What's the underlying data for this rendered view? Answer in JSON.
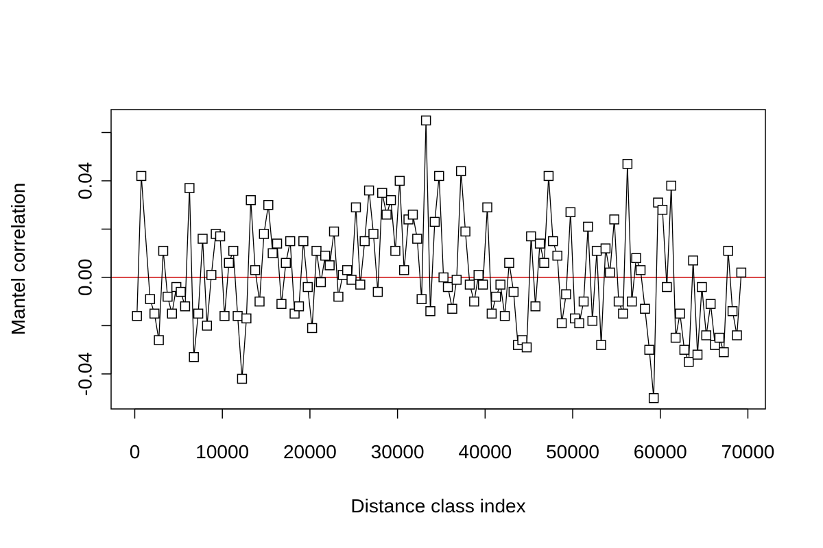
{
  "chart_data": {
    "type": "line",
    "title": "",
    "xlabel": "Distance class index",
    "ylabel": "Mantel correlation",
    "xlim": [
      -2700,
      72000
    ],
    "ylim": [
      -0.0545,
      0.0695
    ],
    "x_ticks": [
      0,
      10000,
      20000,
      30000,
      40000,
      50000,
      60000,
      70000
    ],
    "x_tick_labels": [
      "0",
      "10000",
      "20000",
      "30000",
      "40000",
      "50000",
      "60000",
      "70000"
    ],
    "y_ticks": [
      -0.04,
      -0.02,
      0.0,
      0.02,
      0.04,
      0.06
    ],
    "y_tick_labels": [
      "-0.04",
      "",
      "0.00",
      "",
      "0.04",
      ""
    ],
    "grid": false,
    "legend": "none",
    "marker": "open-square",
    "line_color": "#000000",
    "reference_line": {
      "y": 0,
      "color": "#cc0000"
    },
    "series": [
      {
        "x": [
          250,
          750,
          1750,
          2250,
          2750,
          3250,
          3750,
          4250,
          4750,
          5250,
          5750,
          6250,
          6750,
          7250,
          7750,
          8250,
          8750,
          9250,
          9750,
          10250,
          10750,
          11250,
          11750,
          12250,
          12750,
          13250,
          13750,
          14250,
          14750,
          15250,
          15750,
          16250,
          16750,
          17250,
          17750,
          18250,
          18750,
          19250,
          19750,
          20250,
          20750,
          21250,
          21750,
          22250,
          22750,
          23250,
          23750,
          24250,
          24750,
          25250,
          25750,
          26250,
          26750,
          27250,
          27750,
          28250,
          28750,
          29250,
          29750,
          30250,
          30750,
          31250,
          31750,
          32250,
          32750,
          33250,
          33750,
          34250,
          34750,
          35250,
          35750,
          36250,
          36750,
          37250,
          37750,
          38250,
          38750,
          39250,
          39750,
          40250,
          40750,
          41250,
          41750,
          42250,
          42750,
          43250,
          43750,
          44250,
          44750,
          45250,
          45750,
          46250,
          46750,
          47250,
          47750,
          48250,
          48750,
          49250,
          49750,
          50250,
          50750,
          51250,
          51750,
          52250,
          52750,
          53250,
          53750,
          54250,
          54750,
          55250,
          55750,
          56250,
          56750,
          57250,
          57750,
          58250,
          58750,
          59250,
          59750,
          60250,
          60750,
          61250,
          61750,
          62250,
          62750,
          63250,
          63750,
          64250,
          64750,
          65250,
          65750,
          66250,
          66750,
          67250,
          67750,
          68250,
          68750,
          69250
        ],
        "values": [
          -0.016,
          0.042,
          -0.009,
          -0.015,
          -0.026,
          0.011,
          -0.008,
          -0.015,
          -0.004,
          -0.006,
          -0.012,
          0.037,
          -0.033,
          -0.015,
          0.016,
          -0.02,
          0.001,
          0.018,
          0.017,
          -0.016,
          0.006,
          0.011,
          -0.016,
          -0.042,
          -0.017,
          0.032,
          0.003,
          -0.01,
          0.018,
          0.03,
          0.01,
          0.014,
          -0.011,
          0.006,
          0.015,
          -0.015,
          -0.012,
          0.015,
          -0.004,
          -0.021,
          0.011,
          -0.002,
          0.009,
          0.005,
          0.019,
          -0.008,
          0.001,
          0.003,
          -0.001,
          0.029,
          -0.003,
          0.015,
          0.036,
          0.018,
          -0.006,
          0.035,
          0.026,
          0.032,
          0.011,
          0.04,
          0.003,
          0.024,
          0.026,
          0.016,
          -0.009,
          0.065,
          -0.014,
          0.023,
          0.042,
          0.0,
          -0.004,
          -0.013,
          -0.001,
          0.044,
          0.019,
          -0.003,
          -0.01,
          0.001,
          -0.003,
          0.029,
          -0.015,
          -0.008,
          -0.003,
          -0.016,
          0.006,
          -0.006,
          -0.028,
          -0.026,
          -0.029,
          0.017,
          -0.012,
          0.014,
          0.006,
          0.042,
          0.015,
          0.009,
          -0.019,
          -0.007,
          0.027,
          -0.017,
          -0.019,
          -0.01,
          0.021,
          -0.018,
          0.011,
          -0.028,
          0.012,
          0.002,
          0.024,
          -0.01,
          -0.015,
          0.047,
          -0.01,
          0.008,
          0.003,
          -0.013,
          -0.03,
          -0.05,
          0.031,
          0.028,
          -0.004,
          0.038,
          -0.025,
          -0.015,
          -0.03,
          -0.035,
          0.007,
          -0.032,
          -0.004,
          -0.024,
          -0.011,
          -0.028,
          -0.025,
          -0.031,
          0.011,
          -0.014,
          -0.024,
          0.002
        ]
      }
    ]
  }
}
